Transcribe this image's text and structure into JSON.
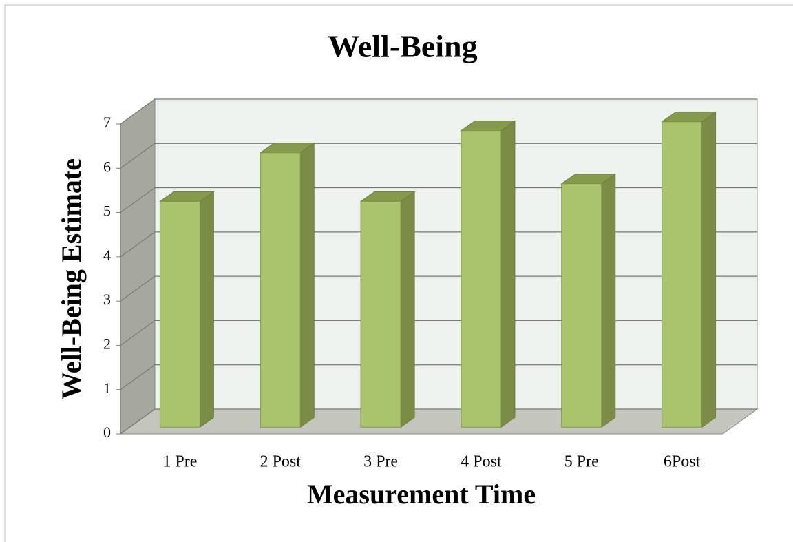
{
  "chart_data": {
    "type": "bar3d",
    "title": "Well-Being",
    "x_label": "Measurement Time",
    "y_label": "Well-Being Estimate",
    "categories": [
      "1 Pre",
      "2 Post",
      "3 Pre",
      "4 Post",
      "5 Pre",
      "6Post"
    ],
    "values": [
      5.1,
      6.2,
      5.1,
      6.7,
      5.5,
      6.9
    ],
    "color": "#a9c46c",
    "ylim": [
      0,
      7
    ],
    "yticks": [
      0,
      1,
      2,
      3,
      4,
      5,
      6,
      7
    ],
    "grid": true
  }
}
